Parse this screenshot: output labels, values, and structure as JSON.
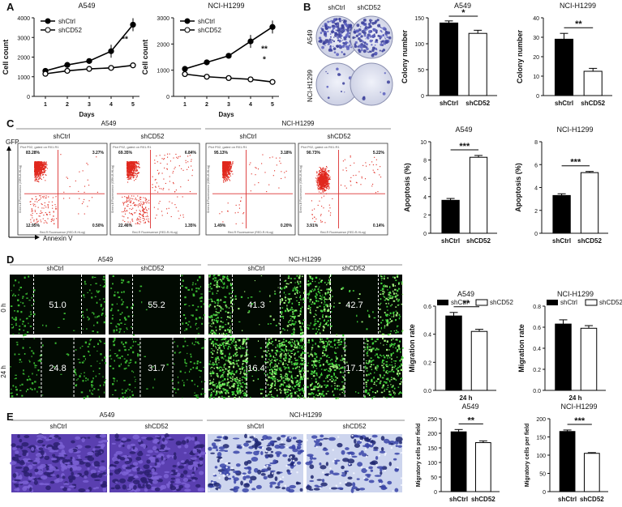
{
  "panels": {
    "A": {
      "letter": "A",
      "charts": [
        {
          "title": "A549",
          "ylabel": "Cell count",
          "xlabel": "Days",
          "x": [
            1,
            2,
            3,
            4,
            5
          ],
          "ylim": [
            0,
            4000
          ],
          "yticks": [
            0,
            1000,
            2000,
            3000,
            4000
          ],
          "series": [
            {
              "name": "shCtrl",
              "values": [
                1300,
                1600,
                1800,
                2300,
                3650
              ],
              "marker": "filled"
            },
            {
              "name": "shCD52",
              "values": [
                1150,
                1300,
                1400,
                1450,
                1580
              ],
              "marker": "open"
            }
          ],
          "stars": [
            "**"
          ]
        },
        {
          "title": "NCI-H1299",
          "ylabel": "Cell count",
          "xlabel": "Days",
          "x": [
            1,
            2,
            3,
            4,
            5
          ],
          "ylim": [
            0,
            3000
          ],
          "yticks": [
            0,
            1000,
            2000,
            3000
          ],
          "series": [
            {
              "name": "shCtrl",
              "values": [
                1050,
                1300,
                1550,
                2100,
                2650
              ],
              "marker": "filled"
            },
            {
              "name": "shCD52",
              "values": [
                850,
                750,
                700,
                650,
                550
              ],
              "marker": "open"
            }
          ],
          "stars": [
            "**",
            "*"
          ]
        }
      ]
    },
    "B": {
      "letter": "B",
      "col_labels": [
        "shCtrl",
        "shCD52"
      ],
      "row_labels": [
        "A549",
        "NCI-H1299"
      ],
      "charts": [
        {
          "title": "A549",
          "ylabel": "Colony number",
          "categories": [
            "shCtrl",
            "shCD52"
          ],
          "values": [
            140,
            120
          ],
          "errors": [
            4,
            6
          ],
          "ylim": [
            0,
            150
          ],
          "yticks": [
            0,
            50,
            100,
            150
          ],
          "sig": "*"
        },
        {
          "title": "NCI-H1299",
          "ylabel": "Colony number",
          "categories": [
            "shCtrl",
            "shCD52"
          ],
          "values": [
            29,
            12.5
          ],
          "errors": [
            3,
            1.5
          ],
          "ylim": [
            0,
            40
          ],
          "yticks": [
            0,
            10,
            20,
            30,
            40
          ],
          "sig": "**"
        }
      ]
    },
    "C": {
      "letter": "C",
      "group_labels": [
        "A549",
        "NCI-H1299"
      ],
      "col_labels": [
        "shCtrl",
        "shCD52",
        "shCtrl",
        "shCD52"
      ],
      "y_axis": "GFP",
      "x_axis": "Annexin V",
      "plot_header": "Plot P02, gated on R01.R1",
      "plot_xlabel": "Red-R Fluorescence (RED-R-HLog)",
      "plot_ylabel": "Green-B Fluorescence (GRN-B-HLog)",
      "quadrants": [
        {
          "ul": "83.28%",
          "ur": "3.27%",
          "ll": "12.95%",
          "lr": "0.50%"
        },
        {
          "ul": "69.35%",
          "ur": "6.84%",
          "ll": "22.46%",
          "lr": "1.35%"
        },
        {
          "ul": "95.13%",
          "ur": "3.18%",
          "ll": "1.49%",
          "lr": "0.20%"
        },
        {
          "ul": "90.73%",
          "ur": "5.22%",
          "ll": "3.91%",
          "lr": "0.14%"
        }
      ],
      "charts": [
        {
          "title": "A549",
          "ylabel": "Apoptosis (%)",
          "categories": [
            "shCtrl",
            "shCD52"
          ],
          "values": [
            3.6,
            8.3
          ],
          "errors": [
            0.2,
            0.2
          ],
          "ylim": [
            0,
            10
          ],
          "yticks": [
            0,
            2,
            4,
            6,
            8,
            10
          ],
          "sig": "***"
        },
        {
          "title": "NCI-H1299",
          "ylabel": "Apoptosis (%)",
          "categories": [
            "shCtrl",
            "shCD52"
          ],
          "values": [
            3.3,
            5.3
          ],
          "errors": [
            0.15,
            0.1
          ],
          "ylim": [
            0,
            8
          ],
          "yticks": [
            0,
            2,
            4,
            6,
            8
          ],
          "sig": "***"
        }
      ]
    },
    "D": {
      "letter": "D",
      "group_labels": [
        "A549",
        "NCI-H1299"
      ],
      "col_labels": [
        "shCtrl",
        "shCD52",
        "shCtrl",
        "shCD52"
      ],
      "row_labels": [
        "0 h",
        "24 h"
      ],
      "widths": [
        [
          "51.0",
          "55.2",
          "41.3",
          "42.7"
        ],
        [
          "24.8",
          "31.7",
          "16.4",
          "17.1"
        ]
      ],
      "charts": [
        {
          "title": "A549",
          "ylabel": "Migration rate",
          "xlabel": "24 h",
          "legend": [
            "shCtrl",
            "shCD52"
          ],
          "values": [
            0.53,
            0.42
          ],
          "errors": [
            0.025,
            0.015
          ],
          "ylim": [
            0,
            0.6
          ],
          "yticks": [
            "0.0",
            "0.2",
            "0.4",
            "0.6"
          ],
          "ytick_vals": [
            0,
            0.2,
            0.4,
            0.6
          ],
          "sig": "**"
        },
        {
          "title": "NCI-H1299",
          "ylabel": "Migration rate",
          "xlabel": "24 h",
          "legend": [
            "shCtrl",
            "shCD52"
          ],
          "values": [
            0.63,
            0.59
          ],
          "errors": [
            0.04,
            0.025
          ],
          "ylim": [
            0,
            0.8
          ],
          "yticks": [
            "0.0",
            "0.2",
            "0.4",
            "0.6",
            "0.8"
          ],
          "ytick_vals": [
            0,
            0.2,
            0.4,
            0.6,
            0.8
          ],
          "sig": ""
        }
      ]
    },
    "E": {
      "letter": "E",
      "group_labels": [
        "A549",
        "NCI-H1299"
      ],
      "col_labels": [
        "shCtrl",
        "shCD52",
        "shCtrl",
        "shCD52"
      ],
      "charts": [
        {
          "title": "A549",
          "ylabel": "Migratory cells per field",
          "categories": [
            "shCtrl",
            "shCD52"
          ],
          "values": [
            205,
            168
          ],
          "errors": [
            8,
            6
          ],
          "ylim": [
            0,
            250
          ],
          "yticks": [
            0,
            50,
            100,
            150,
            200,
            250
          ],
          "sig": "**"
        },
        {
          "title": "NCI-H1299",
          "ylabel": "Migratory cells per field",
          "categories": [
            "shCtrl",
            "shCD52"
          ],
          "values": [
            165,
            105
          ],
          "errors": [
            4,
            2
          ],
          "ylim": [
            0,
            200
          ],
          "yticks": [
            0,
            50,
            100,
            150,
            200
          ],
          "sig": "***"
        }
      ]
    }
  },
  "chart_data": [
    {
      "type": "line",
      "title": "A549",
      "xlabel": "Days",
      "ylabel": "Cell count",
      "x": [
        1,
        2,
        3,
        4,
        5
      ],
      "series": [
        {
          "name": "shCtrl",
          "values": [
            1300,
            1600,
            1800,
            2300,
            3650
          ]
        },
        {
          "name": "shCD52",
          "values": [
            1150,
            1300,
            1400,
            1450,
            1580
          ]
        }
      ],
      "ylim": [
        0,
        4000
      ]
    },
    {
      "type": "line",
      "title": "NCI-H1299",
      "xlabel": "Days",
      "ylabel": "Cell count",
      "x": [
        1,
        2,
        3,
        4,
        5
      ],
      "series": [
        {
          "name": "shCtrl",
          "values": [
            1050,
            1300,
            1550,
            2100,
            2650
          ]
        },
        {
          "name": "shCD52",
          "values": [
            850,
            750,
            700,
            650,
            550
          ]
        }
      ],
      "ylim": [
        0,
        3000
      ]
    },
    {
      "type": "bar",
      "title": "A549",
      "ylabel": "Colony number",
      "categories": [
        "shCtrl",
        "shCD52"
      ],
      "values": [
        140,
        120
      ],
      "ylim": [
        0,
        150
      ]
    },
    {
      "type": "bar",
      "title": "NCI-H1299",
      "ylabel": "Colony number",
      "categories": [
        "shCtrl",
        "shCD52"
      ],
      "values": [
        29,
        12.5
      ],
      "ylim": [
        0,
        40
      ]
    },
    {
      "type": "bar",
      "title": "A549",
      "ylabel": "Apoptosis (%)",
      "categories": [
        "shCtrl",
        "shCD52"
      ],
      "values": [
        3.6,
        8.3
      ],
      "ylim": [
        0,
        10
      ]
    },
    {
      "type": "bar",
      "title": "NCI-H1299",
      "ylabel": "Apoptosis (%)",
      "categories": [
        "shCtrl",
        "shCD52"
      ],
      "values": [
        3.3,
        5.3
      ],
      "ylim": [
        0,
        8
      ]
    },
    {
      "type": "bar",
      "title": "A549",
      "ylabel": "Migration rate",
      "categories": [
        "shCtrl",
        "shCD52"
      ],
      "values": [
        0.53,
        0.42
      ],
      "ylim": [
        0,
        0.6
      ]
    },
    {
      "type": "bar",
      "title": "NCI-H1299",
      "ylabel": "Migration rate",
      "categories": [
        "shCtrl",
        "shCD52"
      ],
      "values": [
        0.63,
        0.59
      ],
      "ylim": [
        0,
        0.8
      ]
    },
    {
      "type": "bar",
      "title": "A549",
      "ylabel": "Migratory cells per field",
      "categories": [
        "shCtrl",
        "shCD52"
      ],
      "values": [
        205,
        168
      ],
      "ylim": [
        0,
        250
      ]
    },
    {
      "type": "bar",
      "title": "NCI-H1299",
      "ylabel": "Migratory cells per field",
      "categories": [
        "shCtrl",
        "shCD52"
      ],
      "values": [
        165,
        105
      ],
      "ylim": [
        0,
        200
      ]
    }
  ]
}
